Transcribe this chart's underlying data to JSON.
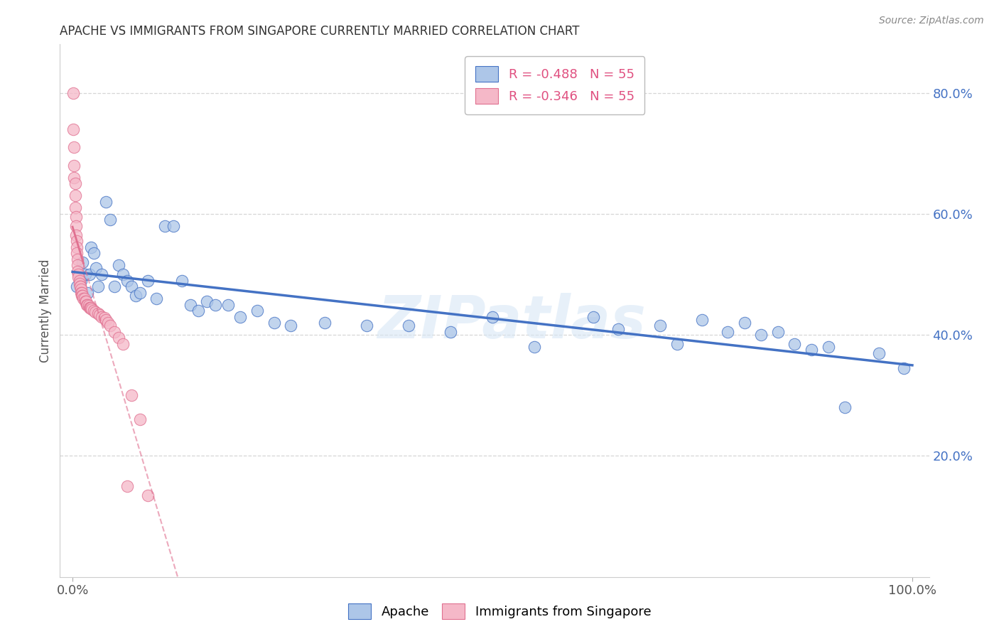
{
  "title": "APACHE VS IMMIGRANTS FROM SINGAPORE CURRENTLY MARRIED CORRELATION CHART",
  "source": "Source: ZipAtlas.com",
  "ylabel": "Currently Married",
  "watermark": "ZIPatlas",
  "legend_apache": "R = -0.488   N = 55",
  "legend_singapore": "R = -0.346   N = 55",
  "apache_color": "#adc6e8",
  "singapore_color": "#f5b8c8",
  "apache_edge_color": "#4472c4",
  "singapore_edge_color": "#e07090",
  "apache_line_color": "#4472c4",
  "singapore_line_color": "#e07090",
  "apache_x": [
    0.005,
    0.01,
    0.012,
    0.015,
    0.018,
    0.02,
    0.022,
    0.025,
    0.028,
    0.03,
    0.035,
    0.04,
    0.045,
    0.05,
    0.055,
    0.06,
    0.065,
    0.07,
    0.075,
    0.08,
    0.09,
    0.1,
    0.11,
    0.12,
    0.13,
    0.14,
    0.15,
    0.16,
    0.17,
    0.185,
    0.2,
    0.22,
    0.24,
    0.26,
    0.3,
    0.35,
    0.4,
    0.45,
    0.5,
    0.55,
    0.62,
    0.65,
    0.7,
    0.72,
    0.75,
    0.78,
    0.8,
    0.82,
    0.84,
    0.86,
    0.88,
    0.9,
    0.92,
    0.96,
    0.99
  ],
  "apache_y": [
    0.48,
    0.49,
    0.52,
    0.5,
    0.47,
    0.5,
    0.545,
    0.535,
    0.51,
    0.48,
    0.5,
    0.62,
    0.59,
    0.48,
    0.515,
    0.5,
    0.49,
    0.48,
    0.465,
    0.47,
    0.49,
    0.46,
    0.58,
    0.58,
    0.49,
    0.45,
    0.44,
    0.455,
    0.45,
    0.45,
    0.43,
    0.44,
    0.42,
    0.415,
    0.42,
    0.415,
    0.415,
    0.405,
    0.43,
    0.38,
    0.43,
    0.41,
    0.415,
    0.385,
    0.425,
    0.405,
    0.42,
    0.4,
    0.405,
    0.385,
    0.375,
    0.38,
    0.28,
    0.37,
    0.345
  ],
  "sg_x": [
    0.001,
    0.001,
    0.002,
    0.002,
    0.002,
    0.003,
    0.003,
    0.003,
    0.004,
    0.004,
    0.004,
    0.005,
    0.005,
    0.005,
    0.006,
    0.006,
    0.006,
    0.007,
    0.007,
    0.008,
    0.008,
    0.009,
    0.009,
    0.01,
    0.01,
    0.011,
    0.011,
    0.012,
    0.013,
    0.014,
    0.015,
    0.016,
    0.017,
    0.018,
    0.019,
    0.02,
    0.021,
    0.022,
    0.023,
    0.025,
    0.027,
    0.03,
    0.032,
    0.035,
    0.038,
    0.04,
    0.042,
    0.045,
    0.05,
    0.055,
    0.06,
    0.065,
    0.07,
    0.08,
    0.09
  ],
  "sg_y": [
    0.8,
    0.74,
    0.71,
    0.68,
    0.66,
    0.65,
    0.63,
    0.61,
    0.595,
    0.58,
    0.565,
    0.555,
    0.545,
    0.535,
    0.525,
    0.515,
    0.505,
    0.5,
    0.495,
    0.49,
    0.485,
    0.48,
    0.48,
    0.475,
    0.47,
    0.47,
    0.465,
    0.465,
    0.46,
    0.46,
    0.455,
    0.455,
    0.45,
    0.45,
    0.448,
    0.445,
    0.445,
    0.445,
    0.443,
    0.44,
    0.438,
    0.435,
    0.433,
    0.43,
    0.428,
    0.425,
    0.42,
    0.415,
    0.405,
    0.395,
    0.385,
    0.15,
    0.3,
    0.26,
    0.135
  ],
  "xlim": [
    -0.015,
    1.02
  ],
  "ylim": [
    0.0,
    0.88
  ],
  "yticks": [
    0.2,
    0.4,
    0.6,
    0.8
  ],
  "ytick_labels": [
    "20.0%",
    "40.0%",
    "60.0%",
    "80.0%"
  ],
  "xtick_positions": [
    0.0,
    1.0
  ],
  "xtick_labels": [
    "0.0%",
    "100.0%"
  ],
  "bg_color": "#ffffff",
  "grid_color": "#cccccc",
  "title_fontsize": 12,
  "tick_fontsize": 13,
  "legend_fontsize": 13
}
